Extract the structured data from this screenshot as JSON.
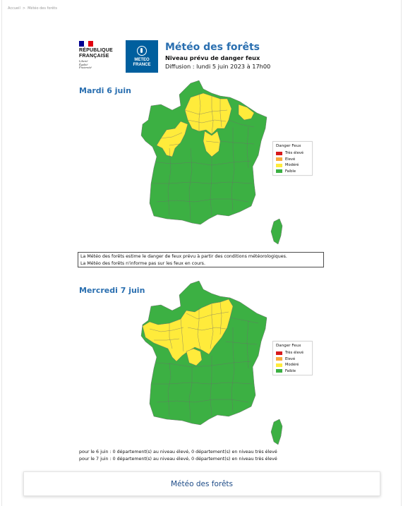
{
  "breadcrumb": {
    "home": "Accueil",
    "separator": ">",
    "current": "Météo des forêts"
  },
  "header": {
    "rf_logo": {
      "line1": "RÉPUBLIQUE",
      "line2": "FRANÇAISE",
      "motto1": "Liberté",
      "motto2": "Égalité",
      "motto3": "Fraternité"
    },
    "mf_logo": {
      "line1": "METEO",
      "line2": "FRANCE",
      "color": "#005f9e"
    },
    "title": "Météo des forêts",
    "subtitle": "Niveau prévu de danger feux",
    "diffusion": "Diffusion : lundi 5 juin 2023 à 17h00"
  },
  "legend": {
    "title": "Danger Feux",
    "levels": [
      {
        "label": "Très élevé",
        "color": "#d7191c"
      },
      {
        "label": "Elevé",
        "color": "#f9a93b"
      },
      {
        "label": "Modéré",
        "color": "#ffeb3b"
      },
      {
        "label": "Faible",
        "color": "#3cb043"
      }
    ]
  },
  "days": [
    {
      "label": "Mardi 6 juin",
      "moderate_zone": "north-west, Paris basin and north-east",
      "levels_present": [
        "Modéré",
        "Faible"
      ]
    },
    {
      "label": "Mercredi 7 juin",
      "moderate_zone": "north-west, Brittany, Paris basin and centre",
      "levels_present": [
        "Modéré",
        "Faible"
      ]
    }
  ],
  "info": {
    "line1": "La Météo des forêts estime le danger de feux prévu à partir des conditions météorologiques.",
    "line2": "La Météo des forêts n'informe pas sur les feux en cours."
  },
  "summary": {
    "line1": "pour le 6 juin : 0 département(s) au niveau élevé, 0 département(s) en niveau très élevé",
    "line2": "pour le 7 juin : 0 département(s) au niveau élevé, 0 département(s) en niveau très élevé"
  },
  "bottom_button": {
    "label": "Météo des forêts"
  }
}
